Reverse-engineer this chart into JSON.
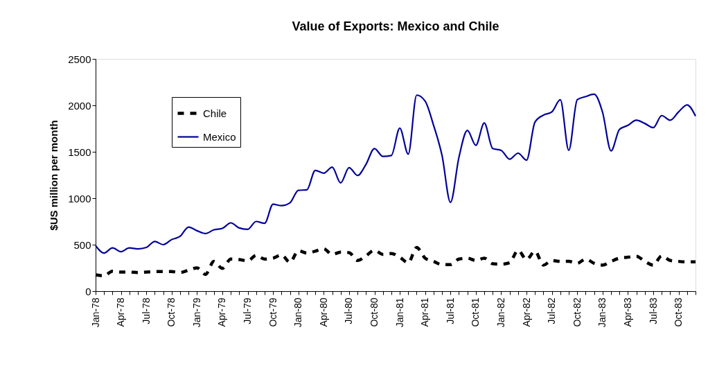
{
  "chart_data": {
    "type": "line",
    "title": "Value of Exports: Mexico and Chile",
    "ylabel": "$US million per month",
    "categories": [
      "Jan-78",
      null,
      null,
      "Apr-78",
      null,
      null,
      "Jul-78",
      null,
      null,
      "Oct-78",
      null,
      null,
      "Jan-79",
      null,
      null,
      "Apr-79",
      null,
      null,
      "Jul-79",
      null,
      null,
      "Oct-79",
      null,
      null,
      "Jan-80",
      null,
      null,
      "Apr-80",
      null,
      null,
      "Jul-80",
      null,
      null,
      "Oct-80",
      null,
      null,
      "Jan-81",
      null,
      null,
      "Apr-81",
      null,
      null,
      "Jul-81",
      null,
      null,
      "Oct-81",
      null,
      null,
      "Jan-82",
      null,
      null,
      "Apr-82",
      null,
      null,
      "Jul-82",
      null,
      null,
      "Oct-82",
      null,
      null,
      "Jan-83",
      null,
      null,
      "Apr-83",
      null,
      null,
      "Jul-83",
      null,
      null,
      "Oct-83",
      null,
      null
    ],
    "series": [
      {
        "name": "Chile",
        "color": "#000000",
        "line_style": "dashed",
        "values": [
          175,
          165,
          215,
          205,
          205,
          200,
          205,
          210,
          210,
          210,
          200,
          225,
          250,
          180,
          320,
          245,
          345,
          340,
          325,
          385,
          345,
          355,
          390,
          310,
          435,
          410,
          430,
          455,
          395,
          420,
          415,
          330,
          380,
          440,
          395,
          405,
          365,
          305,
          470,
          355,
          320,
          285,
          285,
          345,
          355,
          330,
          355,
          295,
          290,
          305,
          440,
          340,
          430,
          280,
          330,
          320,
          320,
          300,
          345,
          300,
          280,
          320,
          355,
          365,
          375,
          320,
          280,
          380,
          330,
          320,
          315,
          315
        ]
      },
      {
        "name": "Mexico",
        "color": "#000099",
        "line_style": "solid",
        "values": [
          490,
          410,
          465,
          425,
          465,
          455,
          470,
          535,
          500,
          555,
          590,
          690,
          650,
          620,
          660,
          675,
          735,
          680,
          665,
          750,
          730,
          935,
          920,
          950,
          1085,
          1090,
          1300,
          1270,
          1335,
          1165,
          1330,
          1245,
          1365,
          1535,
          1450,
          1460,
          1755,
          1475,
          2110,
          2045,
          1785,
          1460,
          955,
          1440,
          1730,
          1570,
          1810,
          1535,
          1515,
          1420,
          1485,
          1410,
          1820,
          1895,
          1930,
          2060,
          1515,
          2060,
          2095,
          2120,
          1925,
          1510,
          1740,
          1785,
          1840,
          1805,
          1760,
          1890,
          1840,
          1930,
          2005,
          1885
        ]
      }
    ],
    "ylim": [
      0,
      2500
    ],
    "yticks": [
      0,
      500,
      1000,
      1500,
      2000,
      2500
    ],
    "grid": false,
    "legend": "top left",
    "marker": "none"
  }
}
